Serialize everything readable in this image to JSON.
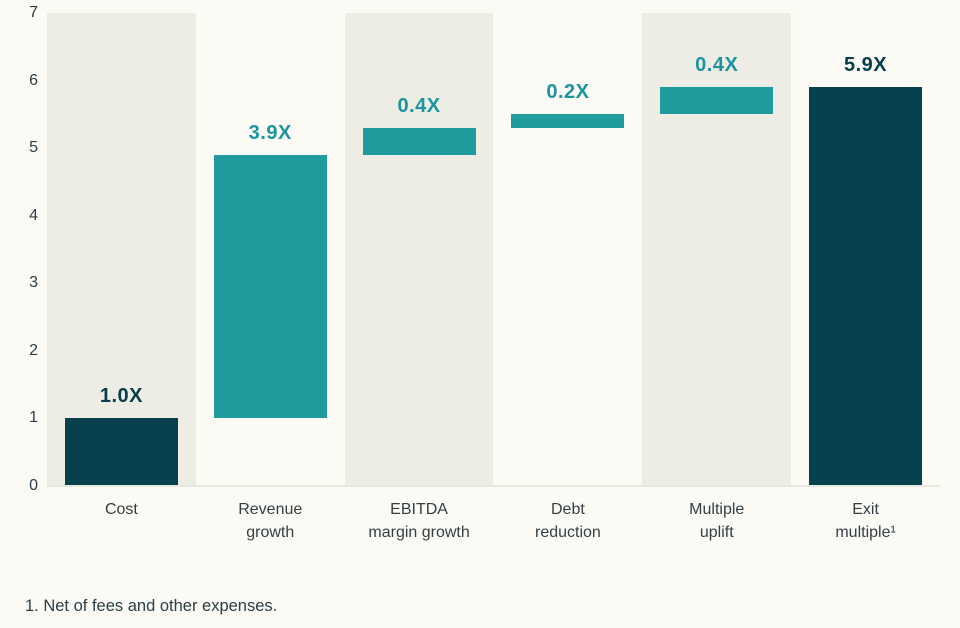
{
  "colors": {
    "background": "#fbfaf5",
    "column_band": "#edece5",
    "bar_teal": "#1f9b9d",
    "bar_dark_teal": "#07414d",
    "label_teal": "#1b95a0",
    "label_dark_teal": "#083e4c",
    "axis_text": "#2d3c46",
    "baseline": "#e8e7df"
  },
  "chart_data": {
    "type": "bar",
    "subtype": "waterfall",
    "title": "",
    "xlabel": "",
    "ylabel": "",
    "ylim": [
      0,
      7
    ],
    "y_ticks": [
      0,
      1,
      2,
      3,
      4,
      5,
      6,
      7
    ],
    "grid": false,
    "legend_position": "none",
    "categories": [
      "Cost",
      "Revenue\ngrowth",
      "EBITDA\nmargin growth",
      "Debt\nreduction",
      "Multiple\nuplift",
      "Exit\nmultiple¹"
    ],
    "bars": [
      {
        "category": "Cost",
        "label": "1.0X",
        "start": 0.0,
        "end": 1.0,
        "style": "dark",
        "band": true
      },
      {
        "category": "Revenue growth",
        "label": "3.9X",
        "start": 1.0,
        "end": 4.9,
        "style": "teal",
        "band": false
      },
      {
        "category": "EBITDA margin growth",
        "label": "0.4X",
        "start": 4.9,
        "end": 5.3,
        "style": "teal",
        "band": true
      },
      {
        "category": "Debt reduction",
        "label": "0.2X",
        "start": 5.3,
        "end": 5.5,
        "style": "teal",
        "band": false
      },
      {
        "category": "Multiple uplift",
        "label": "0.4X",
        "start": 5.5,
        "end": 5.9,
        "style": "teal",
        "band": true
      },
      {
        "category": "Exit multiple¹",
        "label": "5.9X",
        "start": 0.0,
        "end": 5.9,
        "style": "dark",
        "band": false
      }
    ]
  },
  "footnote": "1. Net of fees and other expenses."
}
